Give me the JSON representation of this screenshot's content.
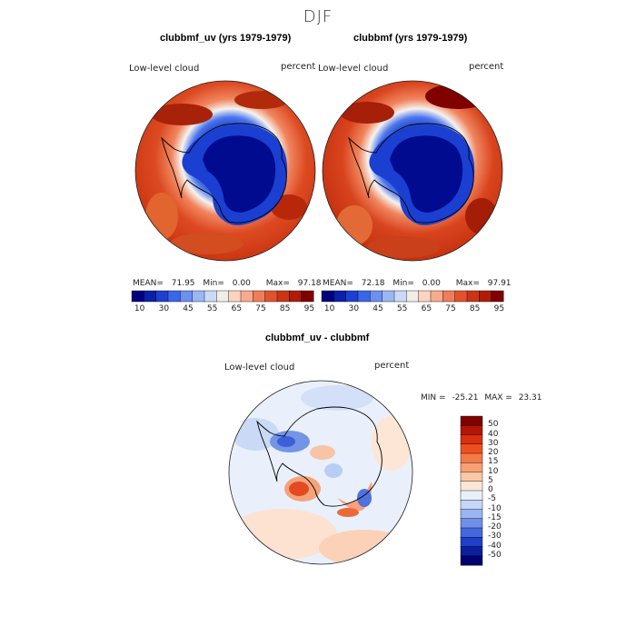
{
  "figure": {
    "title": "DJF"
  },
  "panels": [
    {
      "id": "left",
      "title": "clubbmf_uv (yrs 1979-1979)",
      "field": "Low-level cloud",
      "units": "percent",
      "stats": {
        "mean_label": "MEAN=",
        "mean": "71.95",
        "min_label": "Min=",
        "min": "0.00",
        "max_label": "Max=",
        "max": "97.18"
      }
    },
    {
      "id": "right",
      "title": "clubbmf (yrs 1979-1979)",
      "field": "Low-level cloud",
      "units": "percent",
      "stats": {
        "mean_label": "MEAN=",
        "mean": "72.18",
        "min_label": "Min=",
        "min": "0.00",
        "max_label": "Max=",
        "max": "97.91"
      }
    },
    {
      "id": "diff",
      "title": "clubbmf_uv - clubbmf",
      "field": "Low-level cloud",
      "units": "percent",
      "stats": {
        "min_label": "MIN =",
        "min": "-25.21",
        "max_label": "MAX =",
        "max": "23.31"
      }
    }
  ],
  "colorbar_abs": {
    "colors": [
      "#00007f",
      "#0a1faa",
      "#1e40d0",
      "#3a66ea",
      "#6c8ff0",
      "#9ab6f4",
      "#c9daf8",
      "#f1eee8",
      "#fbd3bf",
      "#f6ab8d",
      "#ef7d5a",
      "#e2522c",
      "#cc3416",
      "#b01c08",
      "#7f0000"
    ],
    "labels": [
      "10",
      "30",
      "45",
      "55",
      "65",
      "75",
      "85",
      "95"
    ]
  },
  "colorbar_diff": {
    "colors": [
      "#7f0000",
      "#b31506",
      "#d9300d",
      "#ee4f21",
      "#f47a45",
      "#f8a072",
      "#fbc7a6",
      "#fde6d6",
      "#eaf1fb",
      "#c6d6f6",
      "#9ab5f1",
      "#6f8fe8",
      "#4468dc",
      "#1f3fc6",
      "#0a1e9f",
      "#000070"
    ],
    "labels": [
      "50",
      "40",
      "30",
      "20",
      "15",
      "10",
      "5",
      "0",
      "-5",
      "-10",
      "-15",
      "-20",
      "-30",
      "-40",
      "-50"
    ]
  }
}
